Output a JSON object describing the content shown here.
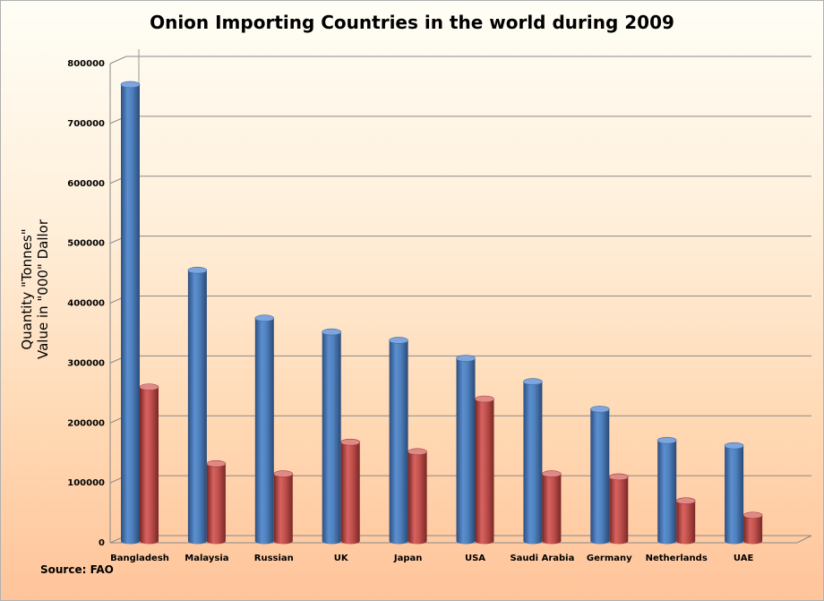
{
  "chart_data": {
    "type": "bar",
    "title": "Onion Importing Countries in the world during 2009",
    "ylabel": [
      "Quantity \"Tonnes\"",
      "Value in \"000\" Dallor"
    ],
    "xlabel": "",
    "source": "Source: FAO",
    "categories": [
      "Bangladesh",
      "Malaysia",
      "Russian",
      "UK",
      "Japan",
      "USA",
      "Saudi Arabia",
      "Germany",
      "Netherlands",
      "UAE"
    ],
    "series": [
      {
        "values": [
          765000,
          455000,
          375000,
          352000,
          338000,
          308000,
          269000,
          223000,
          171000,
          162000
        ]
      },
      {
        "values": [
          260000,
          132000,
          115000,
          168000,
          152000,
          240000,
          115000,
          110000,
          70000,
          46000
        ]
      }
    ],
    "ylim": [
      0,
      800000
    ],
    "yticks": [
      0,
      100000,
      200000,
      300000,
      400000,
      500000,
      600000,
      700000,
      800000
    ],
    "grid": true,
    "colors": {
      "series1": "#4f81bd",
      "series2": "#c0504d"
    }
  }
}
